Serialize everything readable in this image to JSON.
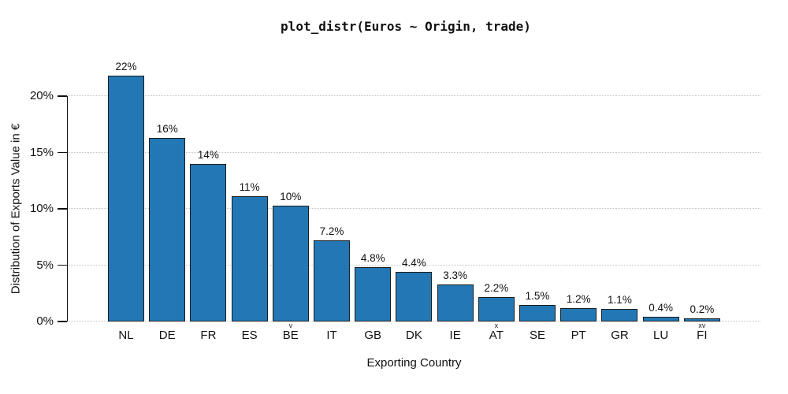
{
  "figure": {
    "title": "plot_distr(Euros ~ Origin, trade)",
    "x_axis_title": "Exporting Country",
    "y_axis_title": "Distribution of Exports Value in €"
  },
  "chart_data": {
    "type": "bar",
    "title": "plot_distr(Euros ~ Origin, trade)",
    "xlabel": "Exporting Country",
    "ylabel": "Distribution of Exports Value in €",
    "categories": [
      "NL",
      "DE",
      "FR",
      "ES",
      "BE",
      "IT",
      "GB",
      "DK",
      "IE",
      "AT",
      "SE",
      "PT",
      "GR",
      "LU",
      "FI"
    ],
    "values": [
      21.8,
      16.3,
      14.0,
      11.1,
      10.25,
      7.2,
      4.8,
      4.4,
      3.3,
      2.2,
      1.5,
      1.2,
      1.1,
      0.4,
      0.25
    ],
    "value_labels": [
      "22%",
      "16%",
      "14%",
      "11%",
      "10%",
      "7.2%",
      "4.8%",
      "4.4%",
      "3.3%",
      "2.2%",
      "1.5%",
      "1.2%",
      "1.1%",
      "0.4%",
      "0.2%"
    ],
    "category_marks": [
      "",
      "",
      "",
      "",
      "v",
      "",
      "",
      "",
      "",
      "x",
      "",
      "",
      "",
      "",
      "xv"
    ],
    "y_ticks": [
      0,
      5,
      10,
      15,
      20
    ],
    "y_tick_labels": [
      "0%",
      "5%",
      "10%",
      "15%",
      "20%"
    ],
    "ylim": [
      0,
      22.9
    ],
    "grid": "horizontal-dotted",
    "legend": "none",
    "bar_color": "#2277b4",
    "bar_border_color": "#1c1c1c",
    "grid_color": "#c4c4c4",
    "axis_color": "#111111"
  }
}
